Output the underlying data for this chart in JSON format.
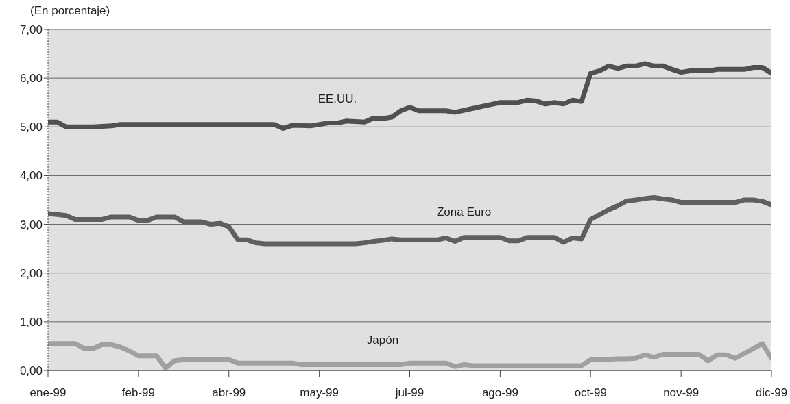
{
  "chart_data": {
    "type": "line",
    "ylabel": "(En porcentaje)",
    "categories": [
      "ene-99",
      null,
      null,
      null,
      null,
      null,
      null,
      null,
      null,
      null,
      "feb-99",
      null,
      null,
      null,
      null,
      null,
      null,
      null,
      null,
      null,
      "abr-99",
      null,
      null,
      null,
      null,
      null,
      null,
      null,
      null,
      null,
      "may-99",
      null,
      null,
      null,
      null,
      null,
      null,
      null,
      null,
      null,
      "jul-99",
      null,
      null,
      null,
      null,
      null,
      null,
      null,
      null,
      null,
      "ago-99",
      null,
      null,
      null,
      null,
      null,
      null,
      null,
      null,
      null,
      "oct-99",
      null,
      null,
      null,
      null,
      null,
      null,
      null,
      null,
      null,
      "nov-99",
      null,
      null,
      null,
      null,
      null,
      null,
      null,
      null,
      null,
      "dic-99"
    ],
    "series": [
      {
        "name": "EE.UU.",
        "color": "#505050",
        "values": [
          5.1,
          5.1,
          5.0,
          5.0,
          5.0,
          5.0,
          5.01,
          5.02,
          5.05,
          5.05,
          5.05,
          5.05,
          5.05,
          5.05,
          5.05,
          5.05,
          5.05,
          5.05,
          5.05,
          5.05,
          5.05,
          5.05,
          5.05,
          5.05,
          5.05,
          5.05,
          4.97,
          5.03,
          5.03,
          5.02,
          5.05,
          5.08,
          5.08,
          5.12,
          5.11,
          5.1,
          5.18,
          5.17,
          5.2,
          5.33,
          5.4,
          5.33,
          5.33,
          5.33,
          5.33,
          5.3,
          5.34,
          5.38,
          5.42,
          5.46,
          5.5,
          5.5,
          5.5,
          5.55,
          5.53,
          5.47,
          5.5,
          5.47,
          5.55,
          5.52,
          6.1,
          6.15,
          6.25,
          6.2,
          6.25,
          6.25,
          6.3,
          6.25,
          6.25,
          6.18,
          6.12,
          6.15,
          6.15,
          6.15,
          6.18,
          6.18,
          6.18,
          6.18,
          6.22,
          6.22,
          6.1
        ]
      },
      {
        "name": "Zona Euro",
        "color": "#5f5f5f",
        "values": [
          3.22,
          3.2,
          3.18,
          3.1,
          3.1,
          3.1,
          3.1,
          3.15,
          3.15,
          3.15,
          3.08,
          3.08,
          3.15,
          3.15,
          3.15,
          3.05,
          3.05,
          3.05,
          3.0,
          3.02,
          2.95,
          2.68,
          2.68,
          2.62,
          2.6,
          2.6,
          2.6,
          2.6,
          2.6,
          2.6,
          2.6,
          2.6,
          2.6,
          2.6,
          2.6,
          2.62,
          2.65,
          2.67,
          2.7,
          2.68,
          2.68,
          2.68,
          2.68,
          2.68,
          2.72,
          2.65,
          2.73,
          2.73,
          2.73,
          2.73,
          2.73,
          2.66,
          2.66,
          2.73,
          2.73,
          2.73,
          2.73,
          2.63,
          2.72,
          2.7,
          3.1,
          3.2,
          3.3,
          3.38,
          3.48,
          3.5,
          3.53,
          3.55,
          3.52,
          3.5,
          3.45,
          3.45,
          3.45,
          3.45,
          3.45,
          3.45,
          3.45,
          3.5,
          3.5,
          3.47,
          3.4
        ]
      },
      {
        "name": "Japón",
        "color": "#a0a0a0",
        "values": [
          0.55,
          0.55,
          0.55,
          0.55,
          0.45,
          0.45,
          0.53,
          0.53,
          0.48,
          0.4,
          0.3,
          0.3,
          0.3,
          0.05,
          0.2,
          0.22,
          0.22,
          0.22,
          0.22,
          0.22,
          0.22,
          0.15,
          0.15,
          0.15,
          0.15,
          0.15,
          0.15,
          0.15,
          0.12,
          0.12,
          0.12,
          0.12,
          0.12,
          0.12,
          0.12,
          0.12,
          0.12,
          0.12,
          0.12,
          0.12,
          0.15,
          0.15,
          0.15,
          0.15,
          0.15,
          0.08,
          0.12,
          0.1,
          0.1,
          0.1,
          0.1,
          0.1,
          0.1,
          0.1,
          0.1,
          0.1,
          0.1,
          0.1,
          0.1,
          0.1,
          0.22,
          0.23,
          0.23,
          0.24,
          0.24,
          0.25,
          0.32,
          0.27,
          0.33,
          0.33,
          0.33,
          0.33,
          0.33,
          0.2,
          0.32,
          0.32,
          0.25,
          0.35,
          0.45,
          0.55,
          0.25
        ]
      }
    ],
    "ylim": [
      0,
      7
    ],
    "yticks": [
      {
        "value": 0,
        "label": "0,00"
      },
      {
        "value": 1,
        "label": "1,00"
      },
      {
        "value": 2,
        "label": "2,00"
      },
      {
        "value": 3,
        "label": "3,00"
      },
      {
        "value": 4,
        "label": "4,00"
      },
      {
        "value": 5,
        "label": "5,00"
      },
      {
        "value": 6,
        "label": "6,00"
      },
      {
        "value": 7,
        "label": "7,00"
      }
    ],
    "grid": "y",
    "legend": false,
    "marker": "none",
    "line_style": "solid"
  }
}
